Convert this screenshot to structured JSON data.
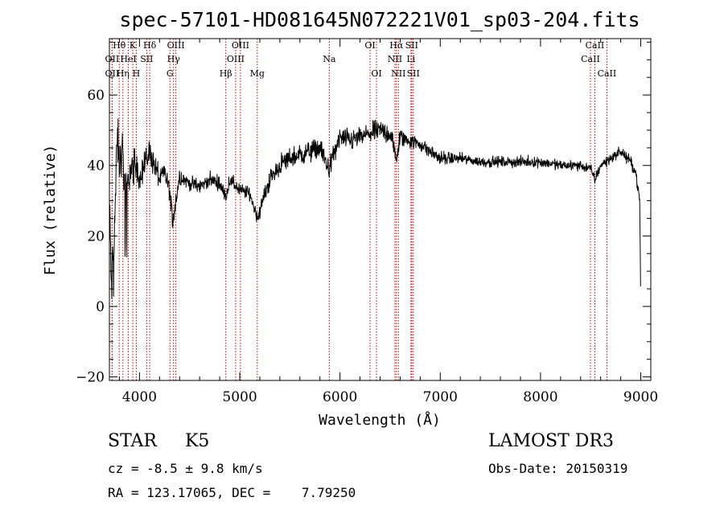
{
  "chart_data": {
    "type": "line",
    "title": "spec-57101-HD081645N072221V01_sp03-204.fits",
    "xlabel": "Wavelength (Å)",
    "ylabel": "Flux (relative)",
    "xlim": [
      3700,
      9100
    ],
    "ylim": [
      -21,
      76
    ],
    "xticks": [
      4000,
      5000,
      6000,
      7000,
      8000,
      9000
    ],
    "yticks": [
      -20,
      0,
      20,
      40,
      60
    ],
    "grid": false,
    "spectrum_anchors": {
      "x": [
        3700,
        3720,
        3750,
        3780,
        3800,
        3830,
        3860,
        3900,
        3950,
        4000,
        4050,
        4100,
        4150,
        4200,
        4250,
        4300,
        4330,
        4400,
        4500,
        4600,
        4700,
        4800,
        4860,
        4900,
        5000,
        5100,
        5180,
        5250,
        5300,
        5400,
        5500,
        5600,
        5700,
        5800,
        5890,
        6000,
        6100,
        6200,
        6300,
        6400,
        6500,
        6563,
        6600,
        6700,
        6800,
        6900,
        7000,
        7200,
        7400,
        7600,
        7800,
        8000,
        8200,
        8400,
        8500,
        8542,
        8600,
        8700,
        8800,
        8900,
        8950,
        8990,
        9000
      ],
      "flux": [
        30,
        5,
        22,
        48,
        40,
        45,
        30,
        38,
        40,
        37,
        40,
        44,
        40,
        36,
        38,
        33,
        24,
        37,
        35,
        34,
        36,
        35,
        31,
        36,
        33,
        32,
        25,
        32,
        36,
        40,
        42,
        43,
        44,
        45,
        39,
        48,
        47,
        48,
        49,
        50,
        49,
        42,
        48,
        47,
        46,
        44,
        42,
        42,
        41,
        41,
        41,
        41,
        40,
        40,
        39,
        36,
        40,
        42,
        44,
        41,
        38,
        30,
        0
      ],
      "noise": [
        8,
        8,
        8,
        8,
        6,
        6,
        6,
        5,
        5,
        4,
        4,
        4,
        4,
        3,
        3,
        3,
        3,
        3,
        2,
        2,
        2,
        2,
        2,
        2,
        2,
        2,
        2,
        2,
        3,
        3,
        3,
        3,
        3,
        3,
        3,
        3,
        3,
        3,
        3,
        3,
        3,
        3,
        3,
        2,
        2,
        2,
        2,
        1.5,
        1.5,
        1.5,
        1.5,
        1.5,
        1.5,
        1.5,
        1.5,
        1.5,
        1.5,
        1.5,
        1.5,
        1.5,
        1.5,
        1.5,
        1.5
      ]
    },
    "lines": [
      {
        "name": "Hθ",
        "wavelength": 3798,
        "row": 0
      },
      {
        "name": "OII",
        "wavelength": 3727,
        "row": 1
      },
      {
        "name": "OII",
        "wavelength": 3727,
        "row": 2
      },
      {
        "name": "Hη",
        "wavelength": 3835,
        "row": 2
      },
      {
        "name": "K",
        "wavelength": 3933,
        "row": 0
      },
      {
        "name": "HeI",
        "wavelength": 3889,
        "row": 1
      },
      {
        "name": "Hδ",
        "wavelength": 4102,
        "row": 0
      },
      {
        "name": "SII",
        "wavelength": 4072,
        "row": 1
      },
      {
        "name": "H",
        "wavelength": 3968,
        "row": 2
      },
      {
        "name": "OIII",
        "wavelength": 4363,
        "row": 0
      },
      {
        "name": "Hγ",
        "wavelength": 4340,
        "row": 1
      },
      {
        "name": "G",
        "wavelength": 4304,
        "row": 2
      },
      {
        "name": "Hβ",
        "wavelength": 4861,
        "row": 2
      },
      {
        "name": "OIII",
        "wavelength": 5007,
        "row": 0
      },
      {
        "name": "OIII",
        "wavelength": 4959,
        "row": 1
      },
      {
        "name": "Mg",
        "wavelength": 5175,
        "row": 2
      },
      {
        "name": "Na",
        "wavelength": 5893,
        "row": 1
      },
      {
        "name": "OI",
        "wavelength": 6300,
        "row": 0
      },
      {
        "name": "OI",
        "wavelength": 6364,
        "row": 2
      },
      {
        "name": "Hα",
        "wavelength": 6563,
        "row": 0
      },
      {
        "name": "NII",
        "wavelength": 6548,
        "row": 1
      },
      {
        "name": "NII",
        "wavelength": 6583,
        "row": 2
      },
      {
        "name": "SII",
        "wavelength": 6716,
        "row": 0
      },
      {
        "name": "Li",
        "wavelength": 6708,
        "row": 1
      },
      {
        "name": "SII",
        "wavelength": 6731,
        "row": 2
      },
      {
        "name": "CaII",
        "wavelength": 8542,
        "row": 0
      },
      {
        "name": "CaII",
        "wavelength": 8498,
        "row": 1
      },
      {
        "name": "CaII",
        "wavelength": 8662,
        "row": 2
      }
    ]
  },
  "info": {
    "star_class": "STAR     K5",
    "survey": "LAMOST DR3",
    "cz": "cz = -8.5 ± 9.8 km/s",
    "obs_date": "Obs-Date: 20150319",
    "radec": "RA = 123.17065, DEC =    7.79250"
  },
  "colors": {
    "line_marker": "#c00000",
    "spectrum": "#000000",
    "axes": "#000000"
  }
}
